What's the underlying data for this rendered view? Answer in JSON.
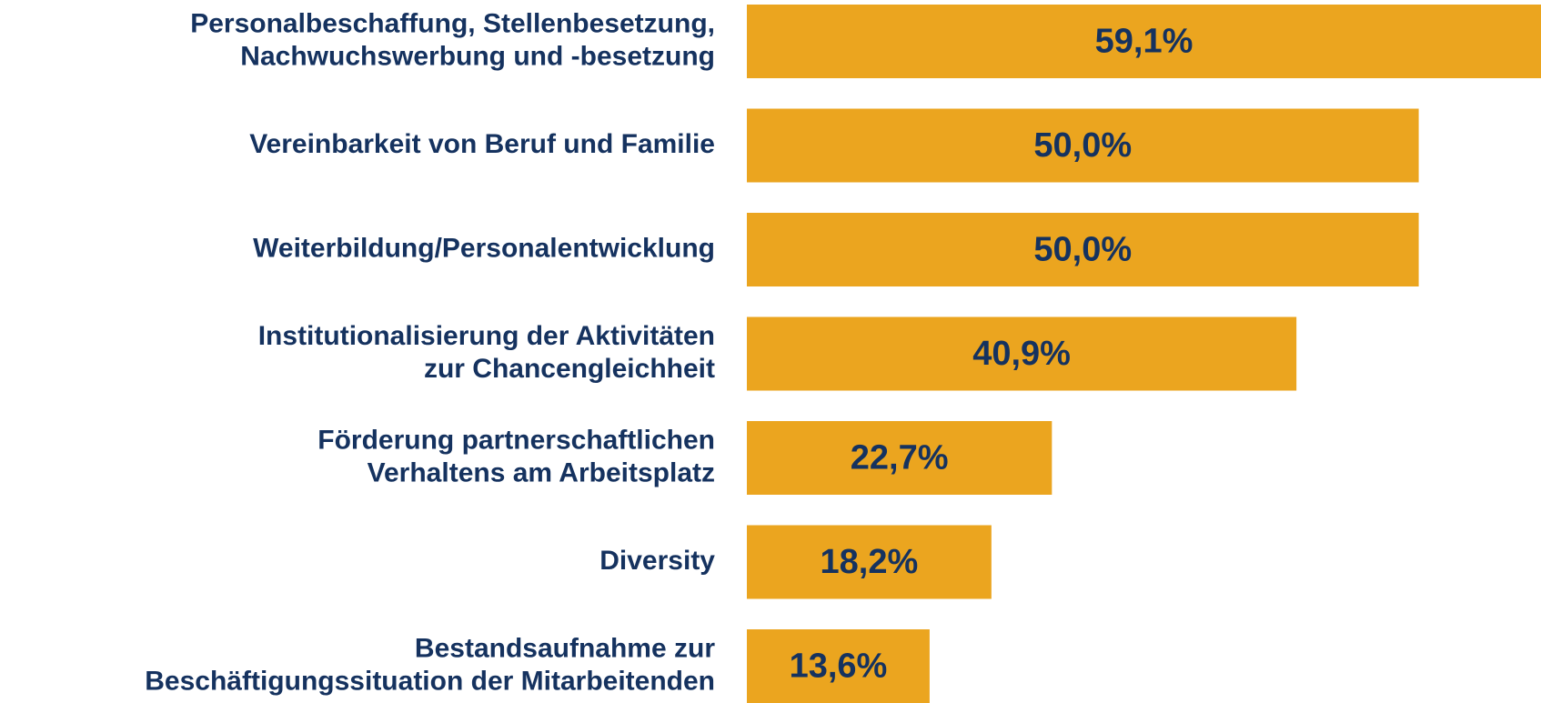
{
  "chart_data": {
    "type": "bar",
    "orientation": "horizontal",
    "categories": [
      "Personalbeschaffung, Stellenbesetzung,\nNachwuchswerbung und -besetzung",
      "Vereinbarkeit von Beruf und Familie",
      "Weiterbildung/Personalentwicklung",
      "Institutionalisierung der Aktivitäten\nzur Chancengleichheit",
      "Förderung partnerschaftlichen\nVerhaltens am Arbeitsplatz",
      "Diversity",
      "Bestandsaufnahme zur\nBeschäftigungssituation der Mitarbeitenden"
    ],
    "values": [
      59.1,
      50.0,
      50.0,
      40.9,
      22.7,
      18.2,
      13.6
    ],
    "value_labels": [
      "59,1%",
      "50,0%",
      "50,0%",
      "40,9%",
      "22,7%",
      "18,2%",
      "13,6%"
    ],
    "color": "#eba51f"
  }
}
